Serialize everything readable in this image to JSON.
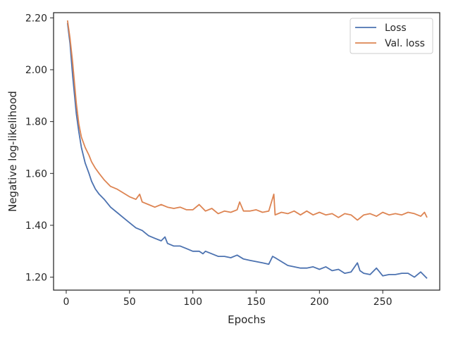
{
  "chart_data": {
    "type": "line",
    "title": "",
    "xlabel": "Epochs",
    "ylabel": "Negative log-likelihood",
    "xlim": [
      -10,
      295
    ],
    "ylim": [
      1.15,
      2.22
    ],
    "x_ticks": [
      0,
      50,
      100,
      150,
      200,
      250
    ],
    "x_tick_labels": [
      "0",
      "50",
      "100",
      "150",
      "200",
      "250"
    ],
    "y_ticks": [
      1.2,
      1.4,
      1.6,
      1.8,
      2.0,
      2.2
    ],
    "y_tick_labels": [
      "1.20",
      "1.40",
      "1.60",
      "1.80",
      "2.00",
      "2.20"
    ],
    "grid": false,
    "legend_position": "top-right",
    "series": [
      {
        "name": "Loss",
        "color": "#4c72b0",
        "x": [
          1,
          3,
          5,
          8,
          10,
          12,
          15,
          18,
          20,
          23,
          26,
          30,
          35,
          40,
          45,
          50,
          55,
          60,
          65,
          70,
          75,
          78,
          80,
          85,
          90,
          95,
          100,
          105,
          108,
          110,
          115,
          120,
          125,
          130,
          135,
          140,
          145,
          150,
          155,
          160,
          163,
          165,
          170,
          175,
          180,
          185,
          190,
          195,
          200,
          205,
          210,
          215,
          220,
          225,
          230,
          232,
          235,
          240,
          245,
          250,
          255,
          260,
          265,
          270,
          275,
          280,
          285
        ],
        "y": [
          2.18,
          2.1,
          1.98,
          1.83,
          1.76,
          1.7,
          1.64,
          1.6,
          1.57,
          1.54,
          1.52,
          1.5,
          1.47,
          1.45,
          1.43,
          1.41,
          1.39,
          1.38,
          1.36,
          1.35,
          1.34,
          1.355,
          1.33,
          1.32,
          1.32,
          1.31,
          1.3,
          1.3,
          1.29,
          1.3,
          1.29,
          1.28,
          1.28,
          1.275,
          1.285,
          1.27,
          1.265,
          1.26,
          1.255,
          1.25,
          1.28,
          1.275,
          1.26,
          1.245,
          1.24,
          1.235,
          1.235,
          1.24,
          1.23,
          1.24,
          1.225,
          1.23,
          1.215,
          1.22,
          1.255,
          1.225,
          1.215,
          1.21,
          1.235,
          1.205,
          1.21,
          1.21,
          1.215,
          1.215,
          1.2,
          1.22,
          1.195
        ]
      },
      {
        "name": "Val. loss",
        "color": "#dd8452",
        "x": [
          1,
          3,
          5,
          8,
          10,
          12,
          15,
          18,
          20,
          23,
          26,
          30,
          35,
          40,
          45,
          50,
          55,
          58,
          60,
          65,
          70,
          75,
          80,
          85,
          90,
          95,
          100,
          105,
          110,
          115,
          120,
          125,
          130,
          135,
          137,
          140,
          145,
          150,
          155,
          160,
          164,
          165,
          170,
          175,
          180,
          185,
          190,
          195,
          200,
          205,
          210,
          215,
          220,
          225,
          230,
          235,
          240,
          245,
          250,
          255,
          260,
          265,
          270,
          275,
          280,
          283,
          285
        ],
        "y": [
          2.19,
          2.12,
          2.03,
          1.87,
          1.79,
          1.74,
          1.7,
          1.67,
          1.645,
          1.62,
          1.6,
          1.575,
          1.55,
          1.54,
          1.525,
          1.51,
          1.5,
          1.52,
          1.49,
          1.48,
          1.47,
          1.48,
          1.47,
          1.465,
          1.47,
          1.46,
          1.46,
          1.48,
          1.455,
          1.465,
          1.445,
          1.455,
          1.45,
          1.46,
          1.49,
          1.455,
          1.455,
          1.46,
          1.45,
          1.455,
          1.52,
          1.44,
          1.45,
          1.445,
          1.455,
          1.44,
          1.455,
          1.44,
          1.45,
          1.44,
          1.445,
          1.43,
          1.445,
          1.44,
          1.42,
          1.44,
          1.445,
          1.435,
          1.45,
          1.44,
          1.445,
          1.44,
          1.45,
          1.445,
          1.435,
          1.45,
          1.43
        ]
      }
    ]
  }
}
